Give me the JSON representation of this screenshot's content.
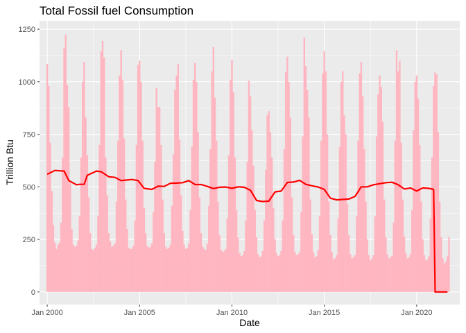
{
  "chart_data": {
    "type": "bar",
    "title": "Total Fossil fuel Consumption",
    "xlabel": "Date",
    "ylabel": "Trillion Btu",
    "xlim": [
      "1999-08",
      "2022-05"
    ],
    "ylim": [
      -60,
      1290
    ],
    "x_ticks": [
      "Jan 2000",
      "Jan 2005",
      "Jan 2010",
      "Jan 2015",
      "Jan 2020"
    ],
    "y_ticks": [
      "0",
      "250",
      "500",
      "750",
      "1000",
      "1250"
    ],
    "x_tick_values": [
      "2000-01",
      "2005-01",
      "2010-01",
      "2015-01",
      "2020-01"
    ],
    "y_tick_values": [
      0,
      250,
      500,
      750,
      1000,
      1250
    ],
    "grid": true,
    "legend": "none",
    "background": "#ebebeb",
    "colors": {
      "bars": "#ffb6c1",
      "line": "#ff0000",
      "grid": "#ffffff"
    },
    "start_month": "2000-01",
    "monthly_values": [
      1085,
      980,
      710,
      480,
      320,
      235,
      205,
      225,
      235,
      330,
      640,
      1160,
      1225,
      985,
      880,
      520,
      300,
      225,
      215,
      220,
      245,
      360,
      640,
      1000,
      1095,
      830,
      650,
      450,
      280,
      205,
      200,
      210,
      225,
      360,
      700,
      1145,
      1195,
      1115,
      640,
      460,
      280,
      240,
      215,
      220,
      230,
      430,
      720,
      1030,
      1150,
      1010,
      730,
      440,
      300,
      210,
      205,
      205,
      220,
      340,
      700,
      1080,
      1100,
      1000,
      720,
      400,
      280,
      220,
      210,
      215,
      230,
      380,
      620,
      970,
      880,
      880,
      700,
      440,
      280,
      215,
      205,
      210,
      225,
      410,
      655,
      960,
      1030,
      1085,
      725,
      460,
      290,
      225,
      205,
      210,
      230,
      390,
      690,
      1010,
      1090,
      1000,
      760,
      450,
      280,
      215,
      205,
      200,
      230,
      410,
      680,
      1050,
      1165,
      925,
      720,
      430,
      270,
      200,
      190,
      195,
      205,
      350,
      650,
      1010,
      1105,
      950,
      640,
      390,
      260,
      185,
      170,
      175,
      195,
      340,
      620,
      1005,
      930,
      770,
      600,
      390,
      260,
      180,
      165,
      170,
      195,
      340,
      580,
      840,
      860,
      760,
      640,
      400,
      250,
      185,
      170,
      175,
      195,
      340,
      680,
      1045,
      1120,
      1000,
      830,
      450,
      270,
      190,
      175,
      180,
      190,
      380,
      740,
      1210,
      1075,
      960,
      830,
      440,
      275,
      190,
      165,
      170,
      200,
      360,
      720,
      1040,
      1145,
      1050,
      750,
      430,
      270,
      190,
      155,
      160,
      175,
      350,
      690,
      1000,
      1050,
      840,
      750,
      420,
      270,
      180,
      160,
      165,
      175,
      360,
      720,
      1040,
      1095,
      930,
      680,
      430,
      250,
      175,
      150,
      160,
      175,
      360,
      740,
      940,
      1030,
      975,
      810,
      440,
      260,
      180,
      160,
      165,
      170,
      330,
      720,
      1150,
      1050,
      1100,
      710,
      440,
      265,
      185,
      160,
      165,
      180,
      390,
      770,
      1000,
      1030,
      920,
      700,
      430,
      250,
      175,
      150,
      155,
      170,
      350,
      640,
      980,
      1045,
      1035,
      760,
      430,
      260,
      160,
      135,
      145,
      170,
      260
    ],
    "rolling_average": {
      "x": [
        "2000-01",
        "2000-06",
        "2000-12",
        "2001-03",
        "2001-08",
        "2001-10",
        "2002-01",
        "2002-03",
        "2002-09",
        "2002-12",
        "2003-05",
        "2003-09",
        "2004-01",
        "2004-04",
        "2004-08",
        "2004-12",
        "2005-04",
        "2005-09",
        "2006-01",
        "2006-05",
        "2006-09",
        "2007-01",
        "2007-05",
        "2007-09",
        "2008-01",
        "2008-05",
        "2008-09",
        "2009-01",
        "2009-05",
        "2009-09",
        "2010-01",
        "2010-05",
        "2010-09",
        "2011-01",
        "2011-05",
        "2011-09",
        "2012-01",
        "2012-05",
        "2012-09",
        "2013-01",
        "2013-05",
        "2013-09",
        "2014-01",
        "2014-05",
        "2014-09",
        "2015-01",
        "2015-05",
        "2015-09",
        "2016-01",
        "2016-05",
        "2016-09",
        "2017-01",
        "2017-05",
        "2017-09",
        "2018-01",
        "2018-05",
        "2018-09",
        "2019-01",
        "2019-05",
        "2019-09",
        "2020-01",
        "2020-05",
        "2020-09",
        "2020-12",
        "2021-01",
        "2021-06",
        "2021-09"
      ],
      "y": [
        560,
        578,
        575,
        530,
        510,
        512,
        512,
        555,
        575,
        572,
        548,
        545,
        530,
        532,
        535,
        530,
        493,
        488,
        503,
        502,
        517,
        518,
        520,
        530,
        511,
        511,
        502,
        492,
        498,
        499,
        493,
        500,
        498,
        484,
        435,
        430,
        432,
        476,
        480,
        521,
        523,
        531,
        512,
        505,
        499,
        488,
        446,
        438,
        440,
        442,
        455,
        500,
        500,
        510,
        515,
        520,
        522,
        510,
        490,
        495,
        480,
        495,
        493,
        488,
        0,
        0,
        0
      ]
    }
  }
}
